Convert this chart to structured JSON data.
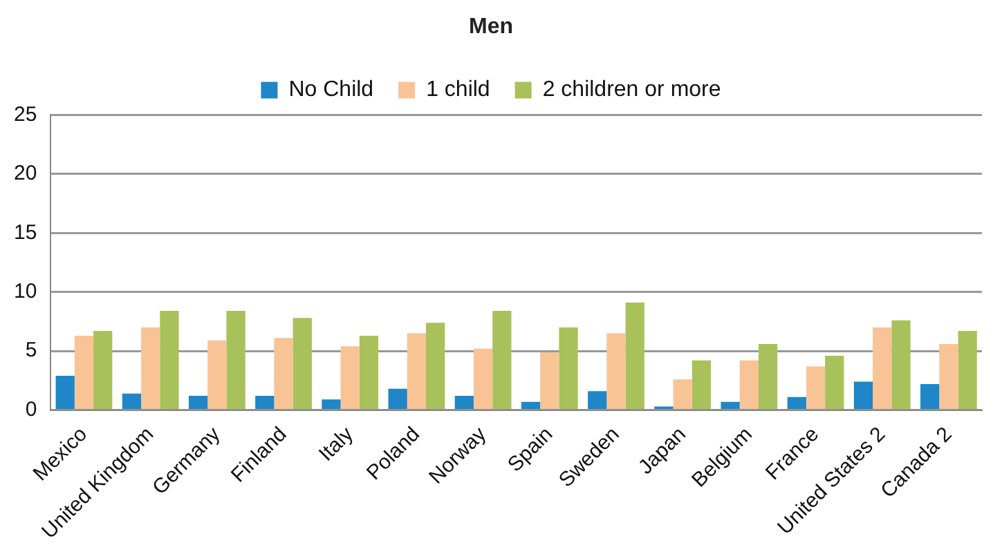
{
  "chart_data": {
    "type": "bar",
    "title": "Men",
    "categories": [
      "Mexico",
      "United Kingdom",
      "Germany",
      "Finland",
      "Italy",
      "Poland",
      "Norway",
      "Spain",
      "Sweden",
      "Japan",
      "Belgium",
      "France",
      "United States 2",
      "Canada 2"
    ],
    "series": [
      {
        "name": "No Child",
        "color": "#1f86c8",
        "values": [
          2.9,
          1.4,
          1.2,
          1.2,
          0.9,
          1.8,
          1.2,
          0.7,
          1.6,
          0.3,
          0.7,
          1.1,
          2.4,
          2.2
        ]
      },
      {
        "name": "1 child",
        "color": "#f8c496",
        "values": [
          6.3,
          7.0,
          5.9,
          6.1,
          5.4,
          6.5,
          5.2,
          4.9,
          6.5,
          2.6,
          4.2,
          3.7,
          7.0,
          5.6
        ]
      },
      {
        "name": "2 children or more",
        "color": "#a8c15a",
        "values": [
          6.7,
          8.4,
          8.4,
          7.8,
          6.3,
          7.4,
          8.4,
          7.0,
          9.1,
          4.2,
          5.6,
          4.6,
          7.6,
          6.7
        ]
      }
    ],
    "ylim": [
      0,
      25
    ],
    "yticks": [
      0,
      5,
      10,
      15,
      20,
      25
    ],
    "grid": "y",
    "legend": "top"
  }
}
